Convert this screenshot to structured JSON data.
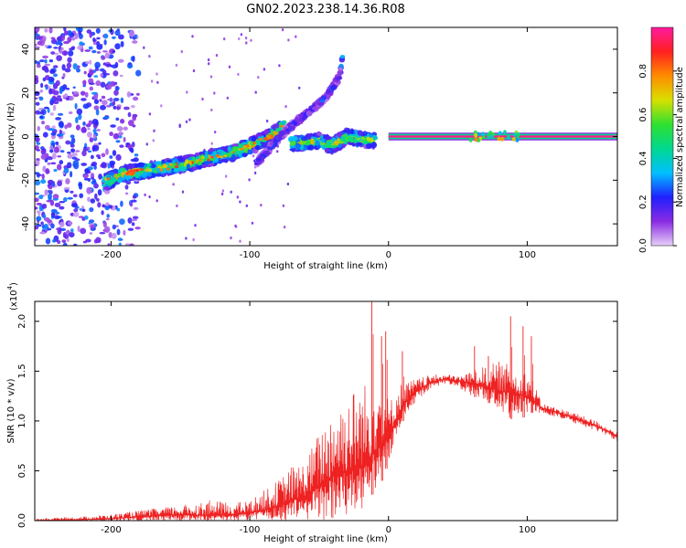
{
  "figure_title": "GN02.2023.238.14.36.R08",
  "chart_data": [
    {
      "type": "heatmap",
      "title": "",
      "xlabel": "Height of straight line (km)",
      "ylabel": "Frequency (Hz)",
      "xlim": [
        -255,
        165
      ],
      "ylim": [
        -50,
        50
      ],
      "xticks": [
        -200,
        -100,
        0,
        100
      ],
      "xtick_labels": [
        "-200",
        "-100",
        "0",
        "100"
      ],
      "yticks": [
        -40,
        -20,
        0,
        20,
        40
      ],
      "ytick_labels": [
        "-40",
        "-20",
        "0",
        "20",
        "40"
      ],
      "colorbar": {
        "label": "Normalized spectral amplitude",
        "range": [
          0,
          1
        ],
        "ticks": [
          0.0,
          0.2,
          0.4,
          0.6,
          0.8
        ],
        "tick_labels": [
          "0.0",
          "0.2",
          "0.4",
          "0.6",
          "0.8"
        ],
        "colors": [
          "#e8d0f8",
          "#8a2be2",
          "#2020ff",
          "#00c0ff",
          "#00d890",
          "#30e030",
          "#d8e000",
          "#ff8c00",
          "#ff2020",
          "#ff1aa0"
        ]
      },
      "features": [
        {
          "name": "scattered noise",
          "x_range": [
            -255,
            -180
          ],
          "freq_range": [
            -50,
            50
          ],
          "amplitude": 0.15
        },
        {
          "name": "main ramp",
          "points": [
            [
              -205,
              -21
            ],
            [
              -190,
              -17
            ],
            [
              -170,
              -15
            ],
            [
              -150,
              -13
            ],
            [
              -130,
              -10
            ],
            [
              -110,
              -7
            ],
            [
              -95,
              -3
            ],
            [
              -85,
              0
            ],
            [
              -75,
              5
            ]
          ],
          "amplitude": 0.55
        },
        {
          "name": "descending arc",
          "points": [
            [
              -95,
              -12
            ],
            [
              -75,
              2
            ],
            [
              -60,
              10
            ],
            [
              -45,
              18
            ],
            [
              -35,
              28
            ],
            [
              -33,
              37
            ]
          ],
          "amplitude": 0.2
        },
        {
          "name": "middle cluster",
          "points": [
            [
              -70,
              -3
            ],
            [
              -60,
              -3
            ],
            [
              -50,
              -2
            ],
            [
              -40,
              -4
            ],
            [
              -30,
              0
            ],
            [
              -20,
              -1
            ],
            [
              -10,
              -2
            ]
          ],
          "amplitude": 0.5
        },
        {
          "name": "flat line",
          "points": [
            [
              0,
              0
            ],
            [
              165,
              0
            ]
          ],
          "amplitude": 1.0
        }
      ]
    },
    {
      "type": "line",
      "title": "",
      "xlabel": "Height of straight line (km)",
      "ylabel": "SNR (10 * v/v)",
      "scale_note": "(x10",
      "scale_exponent": "4",
      "xlim": [
        -255,
        165
      ],
      "ylim": [
        0,
        2.2
      ],
      "xticks": [
        -200,
        -100,
        0,
        100
      ],
      "xtick_labels": [
        "-200",
        "-100",
        "0",
        "100"
      ],
      "yticks": [
        0.0,
        0.5,
        1.0,
        1.5,
        2.0
      ],
      "ytick_labels": [
        "0.0",
        "0.5",
        "1.0",
        "1.5",
        "2.0"
      ],
      "color": "#ee2222",
      "envelope": {
        "x": [
          -255,
          -220,
          -200,
          -180,
          -150,
          -130,
          -110,
          -100,
          -90,
          -80,
          -70,
          -60,
          -50,
          -40,
          -30,
          -20,
          -15,
          -10,
          -5,
          0,
          10,
          20,
          30,
          40,
          50,
          60,
          70,
          80,
          90,
          100,
          105,
          110,
          130,
          150,
          165
        ],
        "base": [
          0.0,
          0.01,
          0.02,
          0.04,
          0.06,
          0.05,
          0.06,
          0.08,
          0.1,
          0.15,
          0.2,
          0.25,
          0.35,
          0.45,
          0.5,
          0.55,
          0.6,
          0.7,
          0.75,
          0.85,
          1.15,
          1.3,
          1.38,
          1.42,
          1.4,
          1.38,
          1.35,
          1.3,
          1.28,
          1.25,
          1.2,
          1.13,
          1.05,
          0.95,
          0.85
        ],
        "upper": [
          0.02,
          0.04,
          0.06,
          0.1,
          0.15,
          0.2,
          0.18,
          0.2,
          0.3,
          0.4,
          0.55,
          0.6,
          0.9,
          1.2,
          1.3,
          1.4,
          1.4,
          1.55,
          1.6,
          1.2,
          1.4,
          1.42,
          1.46,
          1.47,
          1.45,
          1.5,
          1.55,
          1.6,
          1.55,
          1.5,
          1.4,
          1.18,
          1.1,
          1.0,
          0.88
        ],
        "lower": [
          0.0,
          0.0,
          0.0,
          0.0,
          0.0,
          0.0,
          0.0,
          0.0,
          0.0,
          0.0,
          0.0,
          0.0,
          0.0,
          0.0,
          0.05,
          0.1,
          0.2,
          0.3,
          0.4,
          0.6,
          1.0,
          1.2,
          1.32,
          1.38,
          1.34,
          1.25,
          1.2,
          1.1,
          1.0,
          1.05,
          1.1,
          1.08,
          1.0,
          0.9,
          0.8
        ]
      },
      "spikes": [
        [
          -12,
          2.2
        ],
        [
          -5,
          1.85
        ],
        [
          -2,
          1.9
        ],
        [
          10,
          1.7
        ],
        [
          62,
          1.75
        ],
        [
          72,
          1.65
        ],
        [
          88,
          2.05
        ],
        [
          97,
          1.95
        ],
        [
          103,
          1.85
        ]
      ]
    }
  ]
}
